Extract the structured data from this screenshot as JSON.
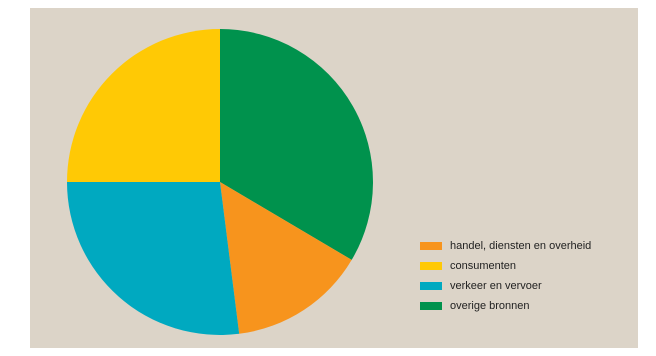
{
  "panel": {
    "background": "#dcd4c8"
  },
  "chart_data": {
    "type": "pie",
    "title": "",
    "legend_position": "bottom-right",
    "slices": [
      {
        "label": "overige bronnen",
        "value": 33.5,
        "color": "#00924d"
      },
      {
        "label": "handel, diensten en overheid",
        "value": 14.5,
        "color": "#f7941d"
      },
      {
        "label": "verkeer en vervoer",
        "value": 27.0,
        "color": "#00a9c0"
      },
      {
        "label": "consumenten",
        "value": 25.0,
        "color": "#ffc905"
      }
    ]
  },
  "legend": {
    "items": [
      {
        "label": "handel, diensten en overheid",
        "color": "#f7941d"
      },
      {
        "label": "consumenten",
        "color": "#ffc905"
      },
      {
        "label": "verkeer en vervoer",
        "color": "#00a9c0"
      },
      {
        "label": "overige bronnen",
        "color": "#00924d"
      }
    ]
  }
}
